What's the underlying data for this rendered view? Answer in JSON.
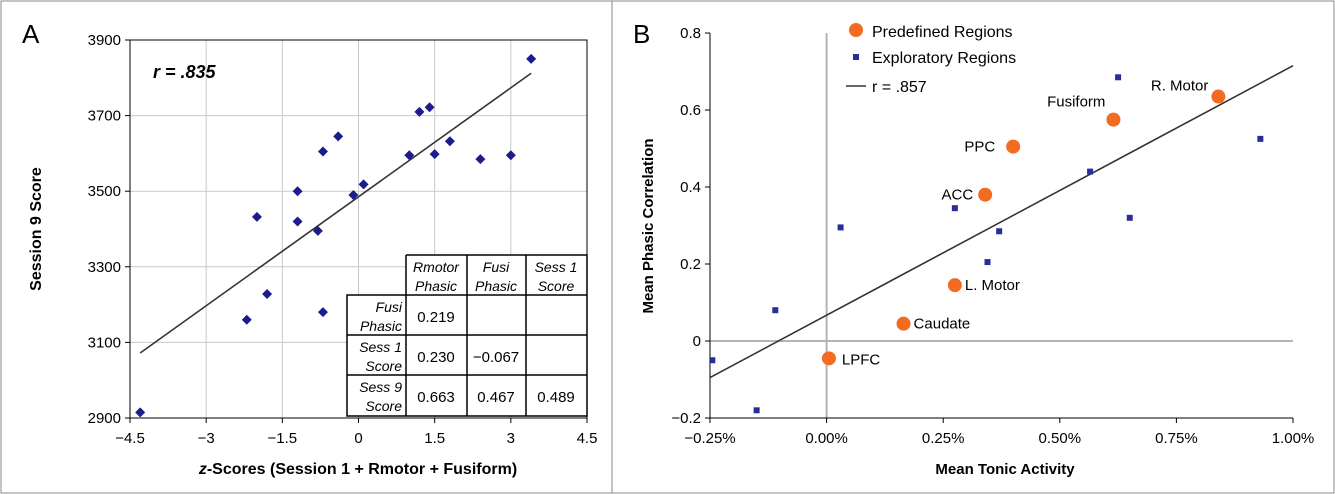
{
  "chart_data": [
    {
      "panel_label": "A",
      "type": "scatter",
      "xlabel": "z-Scores (Session 1 + Rmotor + Fusiform)",
      "xlabel_italic_part": "z",
      "xlabel_rest": "-Scores (Session 1 + Rmotor + Fusiform)",
      "ylabel": "Session 9 Score",
      "xlim": [
        -4.5,
        4.5
      ],
      "ylim": [
        2900,
        3900
      ],
      "xticks": [
        -4.5,
        -3,
        -1.5,
        0,
        1.5,
        3,
        4.5
      ],
      "xtick_labels": [
        "−4.5",
        "−3",
        "−1.5",
        "0",
        "1.5",
        "3",
        "4.5"
      ],
      "yticks": [
        2900,
        3100,
        3300,
        3500,
        3700,
        3900
      ],
      "ytick_labels": [
        "2900",
        "3100",
        "3300",
        "3500",
        "3700",
        "3900"
      ],
      "annotation": "r = .835",
      "marker_color": "#1c1c8c",
      "points": [
        {
          "x": -4.3,
          "y": 2915
        },
        {
          "x": -2.2,
          "y": 3160
        },
        {
          "x": -2.0,
          "y": 3432
        },
        {
          "x": -1.8,
          "y": 3228
        },
        {
          "x": -1.2,
          "y": 3500
        },
        {
          "x": -1.2,
          "y": 3420
        },
        {
          "x": -0.8,
          "y": 3395
        },
        {
          "x": -0.7,
          "y": 3180
        },
        {
          "x": -0.7,
          "y": 3605
        },
        {
          "x": -0.4,
          "y": 3645
        },
        {
          "x": -0.1,
          "y": 3490
        },
        {
          "x": 0.1,
          "y": 3518
        },
        {
          "x": 1.0,
          "y": 3595
        },
        {
          "x": 1.2,
          "y": 3710
        },
        {
          "x": 1.4,
          "y": 3722
        },
        {
          "x": 1.5,
          "y": 3598
        },
        {
          "x": 1.8,
          "y": 3632
        },
        {
          "x": 2.4,
          "y": 3585
        },
        {
          "x": 3.0,
          "y": 3595
        },
        {
          "x": 3.4,
          "y": 3850
        }
      ],
      "fit_line": [
        {
          "x": -4.3,
          "y": 3072
        },
        {
          "x": 3.4,
          "y": 3812
        }
      ],
      "table": {
        "col_headers": [
          [
            "Rmotor",
            "Phasic"
          ],
          [
            "Fusi",
            "Phasic"
          ],
          [
            "Sess 1",
            "Score"
          ]
        ],
        "rows": [
          {
            "header": [
              "Fusi",
              "Phasic"
            ],
            "cells": [
              "0.219",
              "",
              ""
            ]
          },
          {
            "header": [
              "Sess 1",
              "Score"
            ],
            "cells": [
              "0.230",
              "−0.067",
              ""
            ]
          },
          {
            "header": [
              "Sess 9",
              "Score"
            ],
            "cells": [
              "0.663",
              "0.467",
              "0.489"
            ]
          }
        ]
      }
    },
    {
      "panel_label": "B",
      "type": "scatter",
      "xlabel": "Mean Tonic Activity",
      "ylabel": "Mean Phasic Correlation",
      "xlim": [
        -0.25,
        1.0
      ],
      "ylim": [
        -0.2,
        0.8
      ],
      "xticks": [
        -0.25,
        0,
        0.25,
        0.5,
        0.75,
        1.0
      ],
      "xtick_labels": [
        "−0.25%",
        "0.00%",
        "0.25%",
        "0.50%",
        "0.75%",
        "1.00%"
      ],
      "yticks": [
        -0.2,
        0,
        0.2,
        0.4,
        0.6,
        0.8
      ],
      "ytick_labels": [
        "−0.2",
        "0",
        "0.2",
        "0.4",
        "0.6",
        "0.8"
      ],
      "legend": {
        "placement": "top-left",
        "entries": [
          "Predefined Regions",
          "Exploratory Regions"
        ],
        "line_label": "r = .857"
      },
      "colors": {
        "predefined": "#f26b21",
        "exploratory": "#2b2b9e",
        "zero_lines": "#b4b4b4"
      },
      "series": [
        {
          "name": "Predefined Regions",
          "points": [
            {
              "x": 0.005,
              "y": -0.045,
              "label": "LPFC"
            },
            {
              "x": 0.165,
              "y": 0.045,
              "label": "Caudate"
            },
            {
              "x": 0.275,
              "y": 0.145,
              "label": "L. Motor"
            },
            {
              "x": 0.34,
              "y": 0.38,
              "label": "ACC"
            },
            {
              "x": 0.4,
              "y": 0.505,
              "label": "PPC"
            },
            {
              "x": 0.615,
              "y": 0.575,
              "label": "Fusiform"
            },
            {
              "x": 0.84,
              "y": 0.635,
              "label": "R. Motor"
            }
          ]
        },
        {
          "name": "Exploratory Regions",
          "points": [
            {
              "x": -0.245,
              "y": -0.05
            },
            {
              "x": -0.15,
              "y": -0.18
            },
            {
              "x": -0.11,
              "y": 0.08
            },
            {
              "x": 0.03,
              "y": 0.295
            },
            {
              "x": 0.275,
              "y": 0.345
            },
            {
              "x": 0.275,
              "y": 0.145
            },
            {
              "x": 0.345,
              "y": 0.205
            },
            {
              "x": 0.37,
              "y": 0.285
            },
            {
              "x": 0.565,
              "y": 0.44
            },
            {
              "x": 0.625,
              "y": 0.685
            },
            {
              "x": 0.65,
              "y": 0.32
            },
            {
              "x": 0.93,
              "y": 0.525
            }
          ]
        }
      ],
      "fit_line": [
        {
          "x": -0.25,
          "y": -0.095
        },
        {
          "x": 1.0,
          "y": 0.715
        }
      ]
    }
  ]
}
